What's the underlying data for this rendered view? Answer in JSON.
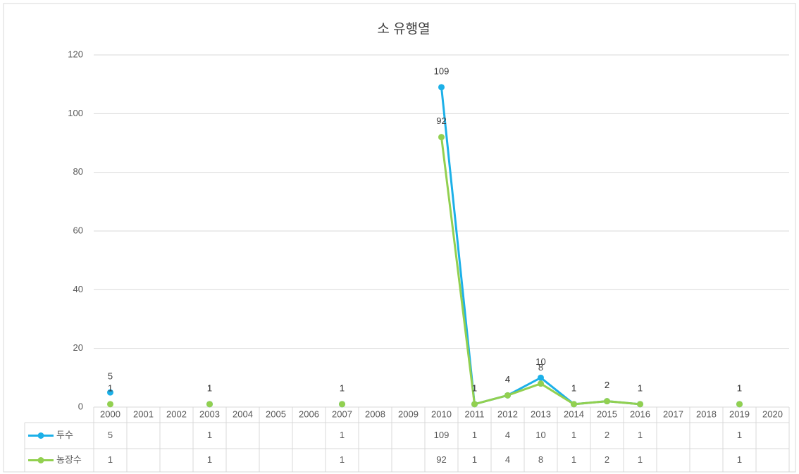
{
  "chart_data": {
    "type": "line",
    "title": "소 유행열",
    "categories": [
      "2000",
      "2001",
      "2002",
      "2003",
      "2004",
      "2005",
      "2006",
      "2007",
      "2008",
      "2009",
      "2010",
      "2011",
      "2012",
      "2013",
      "2014",
      "2015",
      "2016",
      "2017",
      "2018",
      "2019",
      "2020"
    ],
    "series": [
      {
        "name": "두수",
        "color": "#1cb0e8",
        "values": [
          5,
          null,
          null,
          1,
          null,
          null,
          null,
          1,
          null,
          null,
          109,
          1,
          4,
          10,
          1,
          2,
          1,
          null,
          null,
          1,
          null
        ]
      },
      {
        "name": "농장수",
        "color": "#92d050",
        "values": [
          1,
          null,
          null,
          1,
          null,
          null,
          null,
          1,
          null,
          null,
          92,
          1,
          4,
          8,
          1,
          2,
          1,
          null,
          null,
          1,
          null
        ]
      }
    ],
    "ylim": [
      0,
      120
    ],
    "yticks": [
      0,
      20,
      40,
      60,
      80,
      100,
      120
    ],
    "grid": true,
    "data_table": true
  }
}
